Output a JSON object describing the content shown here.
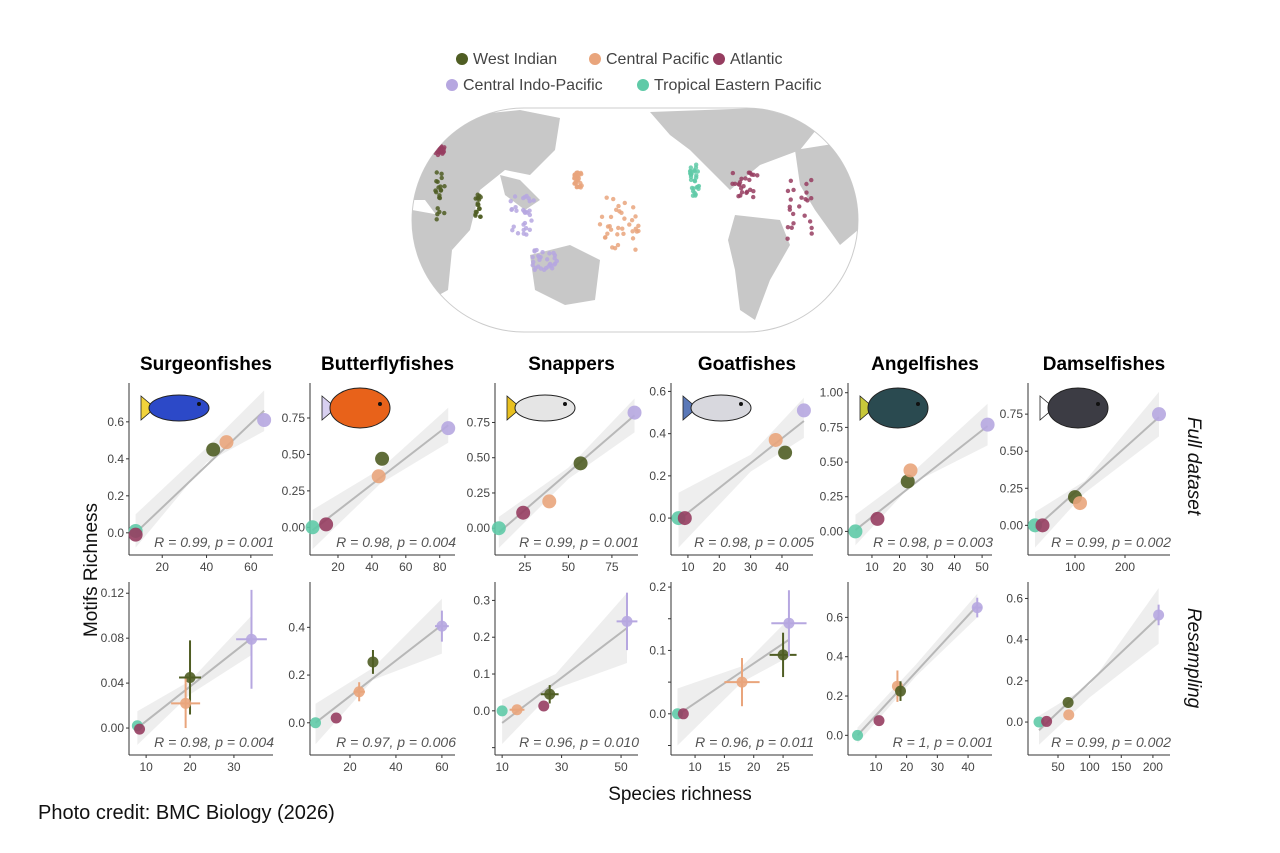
{
  "legend": [
    {
      "name": "West Indian",
      "color": "#4f5d23"
    },
    {
      "name": "Central Pacific",
      "color": "#e9a57c"
    },
    {
      "name": "Atlantic",
      "color": "#963d60"
    },
    {
      "name": "Central Indo-Pacific",
      "color": "#b6a7e0"
    },
    {
      "name": "Tropical Eastern Pacific",
      "color": "#5fcaa7"
    }
  ],
  "ylabel": "Motifs Richness",
  "xlabel": "Species richness",
  "row_labels": [
    "Full dataset",
    "Resampling"
  ],
  "credit": "Photo credit: BMC Biology (2026)",
  "chart_data": [
    {
      "type": "scatter",
      "title": "Surgeonfishes",
      "row": "Full dataset",
      "stat": "R = 0.99, p = 0.001",
      "xlim": [
        5,
        70
      ],
      "ylim": [
        -0.12,
        0.81
      ],
      "xticks": [
        20,
        40,
        60
      ],
      "xtick_labels": [
        "20",
        "40",
        "60"
      ],
      "yticks": [
        0,
        0.2,
        0.4,
        0.6
      ],
      "ytick_labels": [
        "0.0",
        "0.2",
        "0.4",
        "0.6"
      ],
      "points": [
        {
          "region": "Tropical Eastern Pacific",
          "x": 8,
          "y": 0.01
        },
        {
          "region": "Atlantic",
          "x": 8,
          "y": -0.01
        },
        {
          "region": "West Indian",
          "x": 43,
          "y": 0.45
        },
        {
          "region": "Central Pacific",
          "x": 49,
          "y": 0.49
        },
        {
          "region": "Central Indo-Pacific",
          "x": 66,
          "y": 0.61
        }
      ],
      "fit": [
        [
          8,
          0.0
        ],
        [
          66,
          0.66
        ]
      ],
      "ci": [
        [
          8,
          -0.08,
          0.1
        ],
        [
          40,
          0.38,
          0.46
        ],
        [
          66,
          0.55,
          0.77
        ]
      ]
    },
    {
      "type": "scatter",
      "title": "Butterflyfishes",
      "row": "Full dataset",
      "stat": "R = 0.98, p = 0.004",
      "xlim": [
        3.5,
        89
      ],
      "ylim": [
        -0.19,
        0.99
      ],
      "xticks": [
        20,
        40,
        60,
        80
      ],
      "xtick_labels": [
        "20",
        "40",
        "60",
        "80"
      ],
      "yticks": [
        0,
        0.25,
        0.5,
        0.75
      ],
      "ytick_labels": [
        "0.00",
        "0.25",
        "0.50",
        "0.75"
      ],
      "points": [
        {
          "region": "Tropical Eastern Pacific",
          "x": 5,
          "y": 0.0
        },
        {
          "region": "Atlantic",
          "x": 13,
          "y": 0.02
        },
        {
          "region": "Central Pacific",
          "x": 44,
          "y": 0.35
        },
        {
          "region": "West Indian",
          "x": 46,
          "y": 0.47
        },
        {
          "region": "Central Indo-Pacific",
          "x": 85,
          "y": 0.68
        }
      ],
      "fit": [
        [
          5,
          -0.02
        ],
        [
          85,
          0.7
        ]
      ],
      "ci": [
        [
          5,
          -0.15,
          0.12
        ],
        [
          45,
          0.3,
          0.4
        ],
        [
          85,
          0.58,
          0.82
        ]
      ]
    },
    {
      "type": "scatter",
      "title": "Snappers",
      "row": "Full dataset",
      "stat": "R = 0.99, p = 0.001",
      "xlim": [
        7.8,
        90
      ],
      "ylim": [
        -0.19,
        1.03
      ],
      "xticks": [
        25,
        50,
        75
      ],
      "xtick_labels": [
        "25",
        "50",
        "75"
      ],
      "yticks": [
        0,
        0.25,
        0.5,
        0.75
      ],
      "ytick_labels": [
        "0.00",
        "0.25",
        "0.50",
        "0.75"
      ],
      "points": [
        {
          "region": "Tropical Eastern Pacific",
          "x": 10,
          "y": 0.0
        },
        {
          "region": "Atlantic",
          "x": 24,
          "y": 0.11
        },
        {
          "region": "Central Pacific",
          "x": 39,
          "y": 0.19
        },
        {
          "region": "West Indian",
          "x": 57,
          "y": 0.46
        },
        {
          "region": "Central Indo-Pacific",
          "x": 88,
          "y": 0.82
        }
      ],
      "fit": [
        [
          10,
          -0.03
        ],
        [
          88,
          0.8
        ]
      ],
      "ci": [
        [
          10,
          -0.14,
          0.08
        ],
        [
          50,
          0.35,
          0.43
        ],
        [
          88,
          0.68,
          0.92
        ]
      ]
    },
    {
      "type": "scatter",
      "title": "Goatfishes",
      "row": "Full dataset",
      "stat": "R = 0.98, p = 0.005",
      "xlim": [
        4.6,
        49.9
      ],
      "ylim": [
        -0.175,
        0.64
      ],
      "xticks": [
        10,
        20,
        30,
        40
      ],
      "xtick_labels": [
        "10",
        "20",
        "30",
        "40"
      ],
      "yticks": [
        0,
        0.2,
        0.4,
        0.6
      ],
      "ytick_labels": [
        "0.0",
        "0.2",
        "0.4",
        "0.6"
      ],
      "points": [
        {
          "region": "Tropical Eastern Pacific",
          "x": 7,
          "y": 0.0
        },
        {
          "region": "Atlantic",
          "x": 9,
          "y": 0.0
        },
        {
          "region": "Central Pacific",
          "x": 38,
          "y": 0.37
        },
        {
          "region": "West Indian",
          "x": 41,
          "y": 0.31
        },
        {
          "region": "Central Indo-Pacific",
          "x": 47,
          "y": 0.51
        }
      ],
      "fit": [
        [
          7,
          -0.01
        ],
        [
          47,
          0.46
        ]
      ],
      "ci": [
        [
          7,
          -0.14,
          0.12
        ],
        [
          30,
          0.22,
          0.3
        ],
        [
          47,
          0.38,
          0.57
        ]
      ]
    },
    {
      "type": "scatter",
      "title": "Angelfishes",
      "row": "Full dataset",
      "stat": "R = 0.98, p = 0.003",
      "xlim": [
        1.3,
        53.6
      ],
      "ylim": [
        -0.17,
        1.07
      ],
      "xticks": [
        10,
        20,
        30,
        40,
        50
      ],
      "xtick_labels": [
        "10",
        "20",
        "30",
        "40",
        "50"
      ],
      "yticks": [
        0,
        0.25,
        0.5,
        0.75,
        1.0
      ],
      "ytick_labels": [
        "0.00",
        "0.25",
        "0.50",
        "0.75",
        "1.00"
      ],
      "points": [
        {
          "region": "Tropical Eastern Pacific",
          "x": 4,
          "y": 0.0
        },
        {
          "region": "Atlantic",
          "x": 12,
          "y": 0.09
        },
        {
          "region": "West Indian",
          "x": 23,
          "y": 0.36
        },
        {
          "region": "Central Pacific",
          "x": 24,
          "y": 0.44
        },
        {
          "region": "Central Indo-Pacific",
          "x": 52,
          "y": 0.77
        }
      ],
      "fit": [
        [
          4,
          0.01
        ],
        [
          52,
          0.76
        ]
      ],
      "ci": [
        [
          4,
          -0.1,
          0.12
        ],
        [
          25,
          0.35,
          0.43
        ],
        [
          52,
          0.62,
          0.92
        ]
      ]
    },
    {
      "type": "scatter",
      "title": "Damselfishes",
      "row": "Full dataset",
      "stat": "R = 0.99, p = 0.002",
      "xlim": [
        6,
        290
      ],
      "ylim": [
        -0.2,
        0.96
      ],
      "xticks": [
        100,
        200
      ],
      "xtick_labels": [
        "100",
        "200"
      ],
      "yticks": [
        0,
        0.25,
        0.5,
        0.75
      ],
      "ytick_labels": [
        "0.00",
        "0.25",
        "0.50",
        "0.75"
      ],
      "points": [
        {
          "region": "Tropical Eastern Pacific",
          "x": 20,
          "y": 0.0
        },
        {
          "region": "Atlantic",
          "x": 35,
          "y": 0.0
        },
        {
          "region": "West Indian",
          "x": 100,
          "y": 0.19
        },
        {
          "region": "Central Pacific",
          "x": 110,
          "y": 0.15
        },
        {
          "region": "Central Indo-Pacific",
          "x": 268,
          "y": 0.75
        }
      ],
      "fit": [
        [
          20,
          -0.02
        ],
        [
          268,
          0.73
        ]
      ],
      "ci": [
        [
          20,
          -0.15,
          0.09
        ],
        [
          120,
          0.22,
          0.3
        ],
        [
          268,
          0.6,
          0.9
        ]
      ]
    },
    {
      "type": "scatter",
      "title": "Surgeonfishes",
      "row": "Resampling",
      "stat": "R = 0.98, p = 0.004",
      "xlim": [
        6.1,
        38.9
      ],
      "ylim": [
        -0.024,
        0.13
      ],
      "xticks": [
        10,
        20,
        30
      ],
      "xtick_labels": [
        "10",
        "20",
        "30"
      ],
      "yticks": [
        0,
        0.04,
        0.08,
        0.12
      ],
      "ytick_labels": [
        "0.00",
        "0.04",
        "0.08",
        "0.12"
      ],
      "points": [
        {
          "region": "Tropical Eastern Pacific",
          "x": 8,
          "y": 0.002
        },
        {
          "region": "Atlantic",
          "x": 8.5,
          "y": -0.001
        },
        {
          "region": "West Indian",
          "x": 20,
          "y": 0.045,
          "xerr": 2.5,
          "yerr": 0.033
        },
        {
          "region": "Central Pacific",
          "x": 19,
          "y": 0.022,
          "xerr": 3.3,
          "yerr": 0.022
        },
        {
          "region": "Central Indo-Pacific",
          "x": 34,
          "y": 0.079,
          "xerr": 3.5,
          "yerr": 0.044
        }
      ],
      "fit": [
        [
          8,
          0.0
        ],
        [
          34,
          0.08
        ]
      ],
      "ci": [
        [
          8,
          -0.015,
          0.015
        ],
        [
          20,
          0.03,
          0.042
        ],
        [
          34,
          0.065,
          0.1
        ]
      ]
    },
    {
      "type": "scatter",
      "title": "Butterflyfishes",
      "row": "Resampling",
      "stat": "R = 0.97, p = 0.006",
      "xlim": [
        2.6,
        65.7
      ],
      "ylim": [
        -0.135,
        0.59
      ],
      "xticks": [
        20,
        40,
        60
      ],
      "xtick_labels": [
        "20",
        "40",
        "60"
      ],
      "yticks": [
        0,
        0.2,
        0.4
      ],
      "ytick_labels": [
        "0.0",
        "0.2",
        "0.4"
      ],
      "points": [
        {
          "region": "Tropical Eastern Pacific",
          "x": 5,
          "y": 0.0
        },
        {
          "region": "Atlantic",
          "x": 14,
          "y": 0.02
        },
        {
          "region": "Central Pacific",
          "x": 24,
          "y": 0.13,
          "xerr": 2.5,
          "yerr": 0.04
        },
        {
          "region": "West Indian",
          "x": 30,
          "y": 0.255,
          "yerr": 0.05
        },
        {
          "region": "Central Indo-Pacific",
          "x": 60,
          "y": 0.405,
          "xerr": 3,
          "yerr": 0.065
        }
      ],
      "fit": [
        [
          5,
          0.0
        ],
        [
          60,
          0.41
        ]
      ],
      "ci": [
        [
          5,
          -0.09,
          0.08
        ],
        [
          30,
          0.18,
          0.23
        ],
        [
          60,
          0.29,
          0.52
        ]
      ]
    },
    {
      "type": "scatter",
      "title": "Snappers",
      "row": "Resampling",
      "stat": "R = 0.96, p = 0.010",
      "xlim": [
        7.6,
        55.7
      ],
      "ylim": [
        -0.12,
        0.35
      ],
      "xticks": [
        10,
        30,
        50
      ],
      "xtick_labels": [
        "10",
        "30",
        "50"
      ],
      "yticks": [
        -0.1,
        0,
        0.1,
        0.2,
        0.3
      ],
      "ytick_labels": [
        "",
        "0.0",
        "0.1",
        "0.2",
        "0.3"
      ],
      "points": [
        {
          "region": "Tropical Eastern Pacific",
          "x": 10,
          "y": 0.0
        },
        {
          "region": "Central Pacific",
          "x": 15,
          "y": 0.003,
          "xerr": 2.5
        },
        {
          "region": "Atlantic",
          "x": 24,
          "y": 0.013
        },
        {
          "region": "West Indian",
          "x": 26,
          "y": 0.045,
          "xerr": 3,
          "yerr": 0.025
        },
        {
          "region": "Central Indo-Pacific",
          "x": 52,
          "y": 0.243,
          "xerr": 3.5,
          "yerr": 0.078
        }
      ],
      "fit": [
        [
          10,
          -0.033
        ],
        [
          52,
          0.225
        ]
      ],
      "ci": [
        [
          10,
          -0.09,
          0.03
        ],
        [
          28,
          0.06,
          0.1
        ],
        [
          52,
          0.13,
          0.32
        ]
      ]
    },
    {
      "type": "scatter",
      "title": "Goatfishes",
      "row": "Resampling",
      "stat": "R = 0.96, p = 0.011",
      "xlim": [
        5.9,
        30.1
      ],
      "ylim": [
        -0.065,
        0.208
      ],
      "xticks": [
        10,
        15,
        20,
        25
      ],
      "xtick_labels": [
        "10",
        "15",
        "20",
        "25"
      ],
      "yticks": [
        -0.05,
        0,
        0.05,
        0.1,
        0.15,
        0.2
      ],
      "ytick_labels": [
        "",
        "0.0",
        "",
        "0.1",
        "",
        "0.2"
      ],
      "points": [
        {
          "region": "Tropical Eastern Pacific",
          "x": 7,
          "y": 0.0
        },
        {
          "region": "Atlantic",
          "x": 8,
          "y": 0.0
        },
        {
          "region": "Central Pacific",
          "x": 18,
          "y": 0.05,
          "xerr": 3,
          "yerr": 0.038
        },
        {
          "region": "West Indian",
          "x": 25,
          "y": 0.093,
          "xerr": 2.3,
          "yerr": 0.035
        },
        {
          "region": "Central Indo-Pacific",
          "x": 26,
          "y": 0.143,
          "xerr": 3,
          "yerr": 0.052
        }
      ],
      "fit": [
        [
          7,
          -0.002
        ],
        [
          26,
          0.117
        ]
      ],
      "ci": [
        [
          7,
          -0.05,
          0.04
        ],
        [
          18,
          0.05,
          0.075
        ],
        [
          26,
          0.09,
          0.15
        ]
      ]
    },
    {
      "type": "scatter",
      "title": "Angelfishes",
      "row": "Resampling",
      "stat": "R = 1, p = 0.001",
      "xlim": [
        0.9,
        47.8
      ],
      "ylim": [
        -0.1,
        0.78
      ],
      "xticks": [
        10,
        20,
        30,
        40
      ],
      "xtick_labels": [
        "10",
        "20",
        "30",
        "40"
      ],
      "yticks": [
        0,
        0.2,
        0.4,
        0.6
      ],
      "ytick_labels": [
        "0.0",
        "0.2",
        "0.4",
        "0.6"
      ],
      "points": [
        {
          "region": "Tropical Eastern Pacific",
          "x": 4,
          "y": 0.0
        },
        {
          "region": "Atlantic",
          "x": 11,
          "y": 0.075
        },
        {
          "region": "Central Pacific",
          "x": 17,
          "y": 0.25,
          "yerr": 0.08
        },
        {
          "region": "West Indian",
          "x": 18,
          "y": 0.225,
          "yerr": 0.05
        },
        {
          "region": "Central Indo-Pacific",
          "x": 43,
          "y": 0.65,
          "xerr": 1.5,
          "yerr": 0.05
        }
      ],
      "fit": [
        [
          4,
          0.0
        ],
        [
          43,
          0.66
        ]
      ],
      "ci": [
        [
          4,
          -0.04,
          0.04
        ],
        [
          23,
          0.3,
          0.36
        ],
        [
          43,
          0.6,
          0.72
        ]
      ]
    },
    {
      "type": "scatter",
      "title": "Damselfishes",
      "row": "Resampling",
      "stat": "R = 0.99, p = 0.002",
      "xlim": [
        2.6,
        227
      ],
      "ylim": [
        -0.16,
        0.68
      ],
      "xticks": [
        50,
        100,
        150,
        200
      ],
      "xtick_labels": [
        "50",
        "100",
        "150",
        "200"
      ],
      "yticks": [
        0,
        0.2,
        0.4,
        0.6
      ],
      "ytick_labels": [
        "0.0",
        "0.2",
        "0.4",
        "0.6"
      ],
      "points": [
        {
          "region": "Tropical Eastern Pacific",
          "x": 20,
          "y": 0.0
        },
        {
          "region": "Atlantic",
          "x": 32,
          "y": 0.003
        },
        {
          "region": "Central Pacific",
          "x": 67,
          "y": 0.035
        },
        {
          "region": "West Indian",
          "x": 66,
          "y": 0.095
        },
        {
          "region": "Central Indo-Pacific",
          "x": 209,
          "y": 0.52,
          "yerr": 0.05
        }
      ],
      "fit": [
        [
          20,
          -0.04
        ],
        [
          209,
          0.51
        ]
      ],
      "ci": [
        [
          20,
          -0.11,
          0.03
        ],
        [
          100,
          0.12,
          0.18
        ],
        [
          209,
          0.38,
          0.65
        ]
      ]
    }
  ]
}
